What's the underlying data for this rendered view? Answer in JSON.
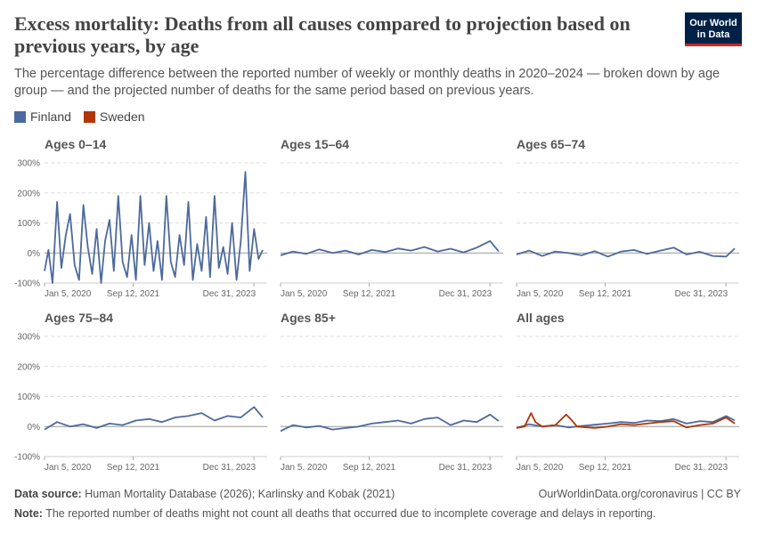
{
  "header": {
    "title": "Excess mortality: Deaths from all causes compared to projection based on previous years, by age",
    "subtitle": "The percentage difference between the reported number of weekly or monthly deaths in 2020–2024 — broken down by age group — and the projected number of deaths for the same period based on previous years.",
    "logo_line1": "Our World",
    "logo_line2": "in Data"
  },
  "legend": [
    {
      "name": "Finland",
      "color": "#4c6a9c"
    },
    {
      "name": "Sweden",
      "color": "#b13507"
    }
  ],
  "chart_data": {
    "type": "line",
    "y_ticks": [
      "300%",
      "200%",
      "100%",
      "0%",
      "-100%"
    ],
    "y_tick_values": [
      300,
      200,
      100,
      0,
      -100
    ],
    "ylim": [
      -100,
      300
    ],
    "x_ticks": [
      "Jan 5, 2020",
      "Sep 12, 2021",
      "Dec 31, 2023"
    ],
    "x_tick_values": [
      "2020-01-05",
      "2021-09-12",
      "2023-12-31"
    ],
    "xlim": [
      "2020-01-05",
      "2024-04-01"
    ],
    "grid": "horizontal dashed",
    "panels": [
      {
        "title": "Ages 0–14",
        "series": [
          {
            "name": "Finland",
            "color": "#4c6a9c",
            "x": [
              "2020-01-05",
              "2020-02-01",
              "2020-03-01",
              "2020-04-01",
              "2020-05-01",
              "2020-06-01",
              "2020-07-01",
              "2020-08-01",
              "2020-09-01",
              "2020-10-01",
              "2020-11-01",
              "2020-12-01",
              "2021-01-01",
              "2021-02-01",
              "2021-03-01",
              "2021-04-01",
              "2021-05-01",
              "2021-06-01",
              "2021-07-01",
              "2021-08-01",
              "2021-09-01",
              "2021-10-01",
              "2021-11-01",
              "2021-12-01",
              "2022-01-01",
              "2022-02-01",
              "2022-03-01",
              "2022-04-01",
              "2022-05-01",
              "2022-06-01",
              "2022-07-01",
              "2022-08-01",
              "2022-09-01",
              "2022-10-01",
              "2022-11-01",
              "2022-12-01",
              "2023-01-01",
              "2023-02-01",
              "2023-03-01",
              "2023-04-01",
              "2023-05-01",
              "2023-06-01",
              "2023-07-01",
              "2023-08-01",
              "2023-09-01",
              "2023-10-01",
              "2023-11-01",
              "2023-12-01",
              "2024-01-01",
              "2024-02-01",
              "2024-03-01"
            ],
            "values": [
              -60,
              10,
              -100,
              170,
              -50,
              60,
              130,
              -40,
              -90,
              160,
              20,
              -70,
              80,
              -100,
              40,
              110,
              -60,
              190,
              -30,
              -80,
              60,
              -90,
              190,
              -40,
              100,
              -60,
              40,
              -90,
              190,
              -30,
              -80,
              60,
              -40,
              170,
              -90,
              30,
              -60,
              120,
              -80,
              190,
              -50,
              20,
              -70,
              100,
              -90,
              40,
              270,
              -60,
              80,
              -20,
              10
            ]
          }
        ]
      },
      {
        "title": "Ages 15–64",
        "series": [
          {
            "name": "Finland",
            "color": "#4c6a9c",
            "x": [
              "2020-01-05",
              "2020-04-01",
              "2020-07-01",
              "2020-10-01",
              "2021-01-01",
              "2021-04-01",
              "2021-07-01",
              "2021-10-01",
              "2022-01-01",
              "2022-04-01",
              "2022-07-01",
              "2022-10-01",
              "2023-01-01",
              "2023-04-01",
              "2023-07-01",
              "2023-10-01",
              "2024-01-01",
              "2024-03-01"
            ],
            "values": [
              -8,
              5,
              -3,
              12,
              0,
              8,
              -5,
              10,
              3,
              15,
              8,
              20,
              5,
              14,
              2,
              18,
              40,
              5
            ]
          }
        ]
      },
      {
        "title": "Ages 65–74",
        "series": [
          {
            "name": "Finland",
            "color": "#4c6a9c",
            "x": [
              "2020-01-05",
              "2020-04-01",
              "2020-07-01",
              "2020-10-01",
              "2021-01-01",
              "2021-04-01",
              "2021-07-01",
              "2021-10-01",
              "2022-01-01",
              "2022-04-01",
              "2022-07-01",
              "2022-10-01",
              "2023-01-01",
              "2023-04-01",
              "2023-07-01",
              "2023-10-01",
              "2024-01-01",
              "2024-03-01"
            ],
            "values": [
              -5,
              8,
              -10,
              5,
              0,
              -8,
              6,
              -12,
              5,
              10,
              -3,
              8,
              18,
              -5,
              4,
              -10,
              -12,
              15
            ]
          }
        ]
      },
      {
        "title": "Ages 75–84",
        "series": [
          {
            "name": "Finland",
            "color": "#4c6a9c",
            "x": [
              "2020-01-05",
              "2020-04-01",
              "2020-07-01",
              "2020-10-01",
              "2021-01-01",
              "2021-04-01",
              "2021-07-01",
              "2021-10-01",
              "2022-01-01",
              "2022-04-01",
              "2022-07-01",
              "2022-10-01",
              "2023-01-01",
              "2023-04-01",
              "2023-07-01",
              "2023-10-01",
              "2024-01-01",
              "2024-03-01"
            ],
            "values": [
              -10,
              15,
              0,
              8,
              -5,
              10,
              5,
              20,
              25,
              15,
              30,
              35,
              45,
              20,
              35,
              30,
              65,
              30
            ]
          }
        ]
      },
      {
        "title": "Ages 85+",
        "series": [
          {
            "name": "Finland",
            "color": "#4c6a9c",
            "x": [
              "2020-01-05",
              "2020-04-01",
              "2020-07-01",
              "2020-10-01",
              "2021-01-01",
              "2021-04-01",
              "2021-07-01",
              "2021-10-01",
              "2022-01-01",
              "2022-04-01",
              "2022-07-01",
              "2022-10-01",
              "2023-01-01",
              "2023-04-01",
              "2023-07-01",
              "2023-10-01",
              "2024-01-01",
              "2024-03-01"
            ],
            "values": [
              -15,
              5,
              -3,
              2,
              -10,
              -5,
              0,
              10,
              15,
              20,
              10,
              25,
              30,
              5,
              20,
              15,
              40,
              18
            ]
          }
        ]
      },
      {
        "title": "All ages",
        "series": [
          {
            "name": "Finland",
            "color": "#4c6a9c",
            "x": [
              "2020-01-05",
              "2020-04-01",
              "2020-07-01",
              "2020-10-01",
              "2021-01-01",
              "2021-04-01",
              "2021-07-01",
              "2021-10-01",
              "2022-01-01",
              "2022-04-01",
              "2022-07-01",
              "2022-10-01",
              "2023-01-01",
              "2023-04-01",
              "2023-07-01",
              "2023-10-01",
              "2024-01-01",
              "2024-03-01"
            ],
            "values": [
              -5,
              8,
              0,
              5,
              -3,
              2,
              6,
              10,
              15,
              12,
              20,
              18,
              25,
              10,
              18,
              15,
              35,
              20
            ]
          },
          {
            "name": "Sweden",
            "color": "#b13507",
            "x": [
              "2020-01-05",
              "2020-03-01",
              "2020-04-15",
              "2020-05-15",
              "2020-07-01",
              "2020-10-01",
              "2020-12-15",
              "2021-01-15",
              "2021-03-01",
              "2021-07-01",
              "2021-10-01",
              "2022-01-01",
              "2022-04-01",
              "2022-07-01",
              "2022-10-01",
              "2023-01-01",
              "2023-04-01",
              "2023-07-01",
              "2023-10-01",
              "2024-01-01",
              "2024-03-01"
            ],
            "values": [
              -5,
              0,
              45,
              15,
              0,
              5,
              40,
              25,
              0,
              -5,
              0,
              8,
              5,
              10,
              15,
              18,
              -3,
              5,
              10,
              30,
              10
            ]
          }
        ]
      }
    ]
  },
  "footer": {
    "source_label": "Data source:",
    "source_text": "Human Mortality Database (2026); Karlinsky and Kobak (2021)",
    "url_text": "OurWorldinData.org/coronavirus | CC BY",
    "note_label": "Note:",
    "note_text": "The reported number of deaths might not count all deaths that occurred due to incomplete coverage and delays in reporting."
  }
}
